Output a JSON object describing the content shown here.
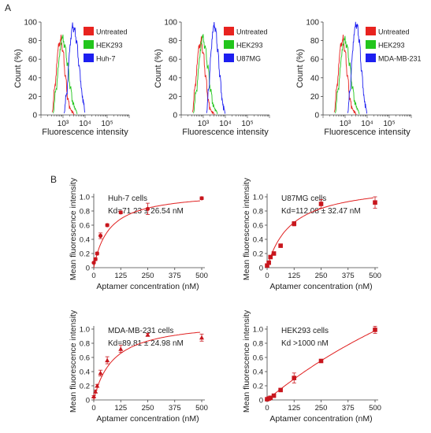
{
  "panels": {
    "A": "A",
    "B": "B"
  },
  "colors": {
    "red": "#e8231f",
    "green": "#22c51c",
    "blue": "#1d1ff0",
    "fit": "#e02020",
    "marker": "#c8161d"
  },
  "chart_data": [
    {
      "type": "line",
      "panel": "A",
      "xlabel": "Fluorescence intensity",
      "ylabel": "Count (%)",
      "xscale": "log",
      "xlim": [
        100,
        1000000
      ],
      "ylim": [
        0,
        100
      ],
      "x_ticks": [
        "10³",
        "10⁴",
        "10⁵"
      ],
      "y_ticks": [
        "0",
        "20",
        "40",
        "60",
        "80",
        "100"
      ],
      "series": [
        {
          "name": "Untreated",
          "color": "#e8231f",
          "x": [
            320,
            450,
            600,
            800,
            1000,
            1300,
            1700,
            2300,
            3200
          ],
          "y": [
            3,
            35,
            72,
            82,
            68,
            40,
            15,
            5,
            1
          ]
        },
        {
          "name": "HEK293",
          "color": "#22c51c",
          "x": [
            350,
            500,
            700,
            900,
            1200,
            1600,
            2200,
            3000,
            4500
          ],
          "y": [
            2,
            30,
            65,
            84,
            75,
            55,
            28,
            10,
            2
          ]
        },
        {
          "name": "Huh-7",
          "color": "#1d1ff0",
          "x": [
            1100,
            1500,
            2000,
            2600,
            3300,
            4200,
            5500,
            7500,
            10000
          ],
          "y": [
            2,
            25,
            70,
            95,
            92,
            78,
            50,
            20,
            3
          ]
        }
      ],
      "legend_position": "top-right"
    },
    {
      "type": "line",
      "panel": "A",
      "xlabel": "Fluorescence intensity",
      "ylabel": "Count (%)",
      "xscale": "log",
      "xlim": [
        100,
        1000000
      ],
      "ylim": [
        0,
        100
      ],
      "x_ticks": [
        "10³",
        "10⁴",
        "10⁵"
      ],
      "y_ticks": [
        "0",
        "20",
        "40",
        "60",
        "80",
        "100"
      ],
      "series": [
        {
          "name": "Untreated",
          "color": "#e8231f",
          "x": [
            320,
            450,
            600,
            800,
            1000,
            1300,
            1700,
            2300,
            3200
          ],
          "y": [
            3,
            35,
            70,
            80,
            66,
            40,
            14,
            4,
            1
          ]
        },
        {
          "name": "HEK293",
          "color": "#22c51c",
          "x": [
            350,
            500,
            700,
            900,
            1200,
            1600,
            2200,
            3000,
            4500
          ],
          "y": [
            2,
            28,
            64,
            85,
            74,
            52,
            25,
            8,
            2
          ]
        },
        {
          "name": "U87MG",
          "color": "#1d1ff0",
          "x": [
            1400,
            1800,
            2300,
            2900,
            3600,
            4500,
            5800,
            7500,
            10000
          ],
          "y": [
            2,
            30,
            72,
            96,
            93,
            70,
            40,
            12,
            2
          ]
        }
      ],
      "legend_position": "top-right"
    },
    {
      "type": "line",
      "panel": "A",
      "xlabel": "Fluorescence intensity",
      "ylabel": "Count (%)",
      "xscale": "log",
      "xlim": [
        100,
        1000000
      ],
      "ylim": [
        0,
        100
      ],
      "x_ticks": [
        "10³",
        "10⁴",
        "10⁵"
      ],
      "y_ticks": [
        "0",
        "20",
        "40",
        "60",
        "80",
        "100"
      ],
      "series": [
        {
          "name": "Untreated",
          "color": "#e8231f",
          "x": [
            320,
            450,
            600,
            800,
            1000,
            1300,
            1700,
            2300,
            3200
          ],
          "y": [
            3,
            35,
            72,
            82,
            68,
            40,
            15,
            5,
            1
          ]
        },
        {
          "name": "HEK293",
          "color": "#22c51c",
          "x": [
            350,
            500,
            700,
            900,
            1200,
            1600,
            2200,
            3000,
            4500
          ],
          "y": [
            2,
            30,
            65,
            82,
            75,
            55,
            28,
            10,
            2
          ]
        },
        {
          "name": "MDA-MB-231",
          "color": "#1d1ff0",
          "x": [
            1300,
            1700,
            2200,
            2800,
            3500,
            4400,
            5700,
            7500,
            10000
          ],
          "y": [
            2,
            28,
            70,
            95,
            97,
            80,
            45,
            15,
            2
          ]
        }
      ],
      "legend_position": "top-right"
    },
    {
      "type": "scatter",
      "panel": "B",
      "title": "Huh-7 cells",
      "annotation": "Kd=71.23 ± 26.54 nM",
      "xlabel": "Aptamer concentration (nM)",
      "ylabel": "Mean fluorescence intensity",
      "xlim": [
        0,
        500
      ],
      "ylim": [
        0,
        1.0
      ],
      "x_ticks": [
        "0",
        "125",
        "250",
        "375",
        "500"
      ],
      "y_ticks": [
        "0",
        "0.2",
        "0.4",
        "0.6",
        "0.8",
        "1.0"
      ],
      "marker": "circle",
      "fit": {
        "Bmax": 1.08,
        "Kd": 71.23
      },
      "x": [
        0,
        7.8,
        15.6,
        31.25,
        62.5,
        125,
        250,
        500
      ],
      "y": [
        0.07,
        0.12,
        0.2,
        0.45,
        0.6,
        0.78,
        0.83,
        0.98
      ],
      "err": [
        0.01,
        0.02,
        0.02,
        0.04,
        0.02,
        0.02,
        0.08,
        0.02
      ]
    },
    {
      "type": "scatter",
      "panel": "B",
      "title": "U87MG cells",
      "annotation": "Kd=112.08 ± 32.47 nM",
      "xlabel": "Aptamer concentration (nM)",
      "ylabel": "Mean fluorescence intensity",
      "xlim": [
        0,
        500
      ],
      "ylim": [
        0,
        1.0
      ],
      "x_ticks": [
        "0",
        "125",
        "250",
        "375",
        "500"
      ],
      "y_ticks": [
        "0",
        "0.2",
        "0.4",
        "0.6",
        "0.8",
        "1.0"
      ],
      "marker": "square",
      "fit": {
        "Bmax": 1.21,
        "Kd": 112.08
      },
      "x": [
        0,
        7.8,
        15.6,
        31.25,
        62.5,
        125,
        250,
        500
      ],
      "y": [
        0.03,
        0.07,
        0.15,
        0.2,
        0.31,
        0.62,
        0.9,
        0.92
      ],
      "err": [
        0.01,
        0.01,
        0.02,
        0.02,
        0.02,
        0.03,
        0.06,
        0.08
      ]
    },
    {
      "type": "scatter",
      "panel": "B",
      "title": "MDA-MB-231 cells",
      "annotation": "Kd=89.81 ± 24.98 nM",
      "xlabel": "Aptamer concentration (nM)",
      "ylabel": "Mean fluorescence intensity",
      "xlim": [
        0,
        500
      ],
      "ylim": [
        0,
        1.0
      ],
      "x_ticks": [
        "0",
        "125",
        "250",
        "375",
        "500"
      ],
      "y_ticks": [
        "0",
        "0.2",
        "0.4",
        "0.6",
        "0.8",
        "1.0"
      ],
      "marker": "triangle",
      "fit": {
        "Bmax": 1.13,
        "Kd": 89.81
      },
      "x": [
        0,
        7.8,
        15.6,
        31.25,
        62.5,
        125,
        250,
        500
      ],
      "y": [
        0.05,
        0.12,
        0.2,
        0.38,
        0.56,
        0.72,
        0.92,
        0.88
      ],
      "err": [
        0.01,
        0.02,
        0.02,
        0.04,
        0.05,
        0.05,
        0.02,
        0.05
      ]
    },
    {
      "type": "scatter",
      "panel": "B",
      "title": "HEK293 cells",
      "annotation": "Kd >1000 nM",
      "xlabel": "Aptamer concentration (nM)",
      "ylabel": "Mean fluorescence intensity",
      "xlim": [
        0,
        500
      ],
      "ylim": [
        0,
        1.0
      ],
      "x_ticks": [
        "0",
        "125",
        "250",
        "375",
        "500"
      ],
      "y_ticks": [
        "0",
        "0.2",
        "0.4",
        "0.6",
        "0.8",
        "1.0"
      ],
      "marker": "square",
      "fit": {
        "Bmax": 4.2,
        "Kd": 1650
      },
      "x": [
        0,
        7.8,
        15.6,
        31.25,
        62.5,
        125,
        250,
        500
      ],
      "y": [
        0.01,
        0.02,
        0.03,
        0.06,
        0.14,
        0.31,
        0.55,
        0.99
      ],
      "err": [
        0.01,
        0.01,
        0.01,
        0.01,
        0.02,
        0.07,
        0.02,
        0.05
      ]
    }
  ]
}
